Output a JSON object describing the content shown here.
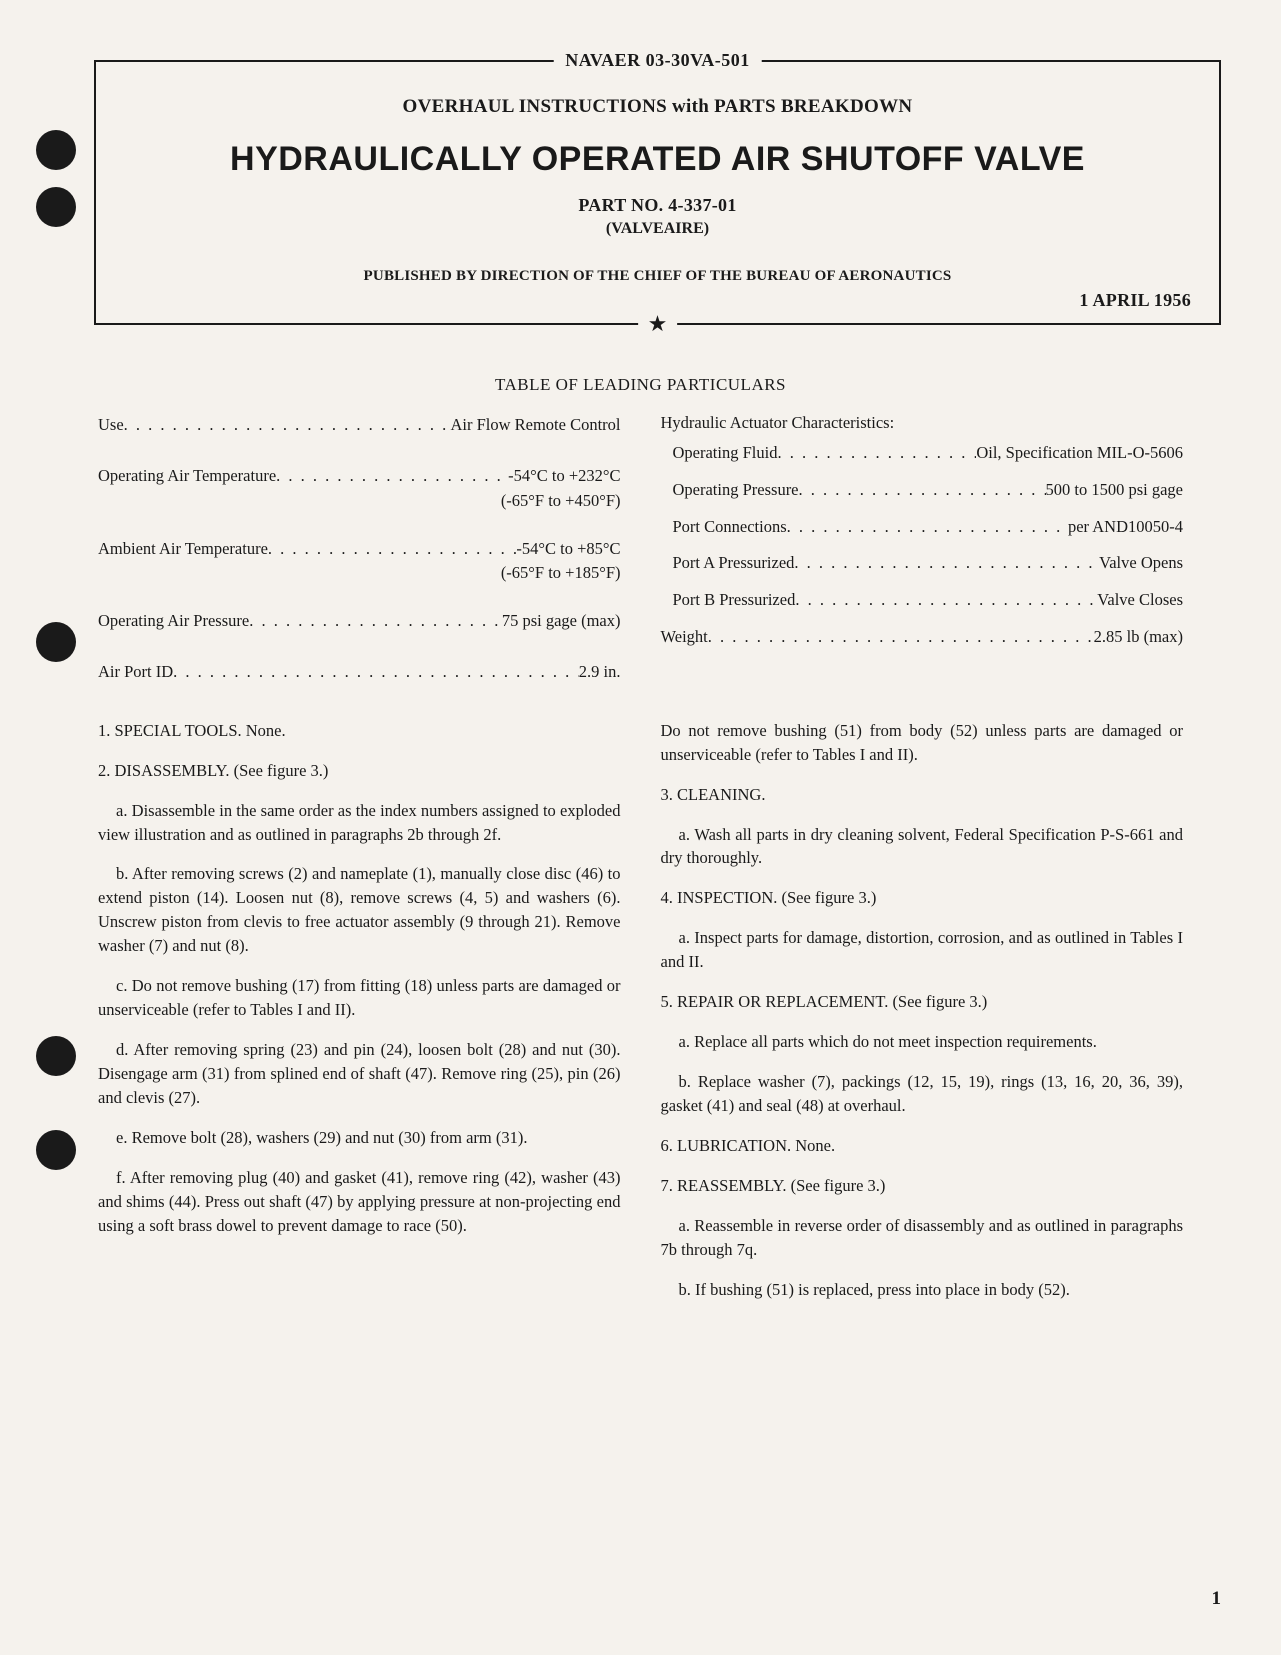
{
  "header": {
    "document_ref": "NAVAER 03-30VA-501",
    "subtitle": "OVERHAUL INSTRUCTIONS with PARTS BREAKDOWN",
    "title": "HYDRAULICALLY OPERATED AIR SHUTOFF VALVE",
    "part_no": "PART NO. 4-337-01",
    "manufacturer": "(VALVEAIRE)",
    "publisher": "PUBLISHED BY DIRECTION OF THE CHIEF OF THE BUREAU OF AERONAUTICS",
    "date": "1 APRIL 1956",
    "star": "★"
  },
  "table_title": "TABLE OF LEADING PARTICULARS",
  "particulars_left": [
    {
      "label": "Use",
      "value": "Air Flow Remote Control",
      "sub": "",
      "tall": true
    },
    {
      "label": "Operating Air Temperature",
      "value": "-54°C to +232°C",
      "sub": "(-65°F to +450°F)",
      "tall": true
    },
    {
      "label": "Ambient Air Temperature",
      "value": "-54°C to +85°C",
      "sub": "(-65°F to +185°F)",
      "tall": true
    },
    {
      "label": "Operating Air Pressure",
      "value": "75 psi gage (max)",
      "sub": "",
      "tall": true
    },
    {
      "label": "Air Port ID",
      "value": "2.9 in.",
      "sub": "",
      "tall": false
    }
  ],
  "particulars_right": [
    {
      "label": "Hydraulic Actuator Characteristics:",
      "value": "",
      "sub": "",
      "header": true
    },
    {
      "label": "Operating Fluid",
      "value": "Oil, Specification MIL-O-5606",
      "sub": "",
      "indent": true
    },
    {
      "label": "Operating Pressure",
      "value": "500 to 1500 psi gage",
      "sub": "",
      "indent": true
    },
    {
      "label": "Port Connections",
      "value": "per AND10050-4",
      "sub": "",
      "indent": true
    },
    {
      "label": "Port A Pressurized",
      "value": "Valve Opens",
      "sub": "",
      "indent": true
    },
    {
      "label": "Port B Pressurized",
      "value": "Valve Closes",
      "sub": "",
      "indent": true
    },
    {
      "label": "Weight",
      "value": "2.85 lb (max)",
      "sub": ""
    }
  ],
  "body_left": [
    {
      "text": "1. SPECIAL TOOLS. None.",
      "indent": false
    },
    {
      "text": "2. DISASSEMBLY. (See figure 3.)",
      "indent": false
    },
    {
      "text": "a. Disassemble in the same order as the index numbers assigned to exploded view illustration and as outlined in paragraphs 2b through 2f.",
      "indent": true
    },
    {
      "text": "b. After removing screws (2) and nameplate (1), manually close disc (46) to extend piston (14). Loosen nut (8), remove screws (4, 5) and washers (6). Unscrew piston from clevis to free actuator assembly (9 through 21). Remove washer (7) and nut (8).",
      "indent": true
    },
    {
      "text": "c. Do not remove bushing (17) from fitting (18) unless parts are damaged or unserviceable (refer to Tables I and II).",
      "indent": true
    },
    {
      "text": "d. After removing spring (23) and pin (24), loosen bolt (28) and nut (30). Disengage arm (31) from splined end of shaft (47). Remove ring (25), pin (26) and clevis (27).",
      "indent": true
    },
    {
      "text": "e. Remove bolt (28), washers (29) and nut (30) from arm (31).",
      "indent": true
    },
    {
      "text": "f. After removing plug (40) and gasket (41), remove ring (42), washer (43) and shims (44). Press out shaft (47) by applying pressure at non-projecting end using a soft brass dowel to prevent damage to race (50).",
      "indent": true
    }
  ],
  "body_right": [
    {
      "text": "Do not remove bushing (51) from body (52) unless parts are damaged or unserviceable (refer to Tables I and II).",
      "indent": false
    },
    {
      "text": "3. CLEANING.",
      "indent": false
    },
    {
      "text": "a. Wash all parts in dry cleaning solvent, Federal Specification P-S-661 and dry thoroughly.",
      "indent": true
    },
    {
      "text": "4. INSPECTION. (See figure 3.)",
      "indent": false
    },
    {
      "text": "a. Inspect parts for damage, distortion, corrosion, and as outlined in Tables I and II.",
      "indent": true
    },
    {
      "text": "5. REPAIR OR REPLACEMENT. (See figure 3.)",
      "indent": false
    },
    {
      "text": "a. Replace all parts which do not meet inspection requirements.",
      "indent": true
    },
    {
      "text": "b. Replace washer (7), packings (12, 15, 19), rings (13, 16, 20, 36, 39), gasket (41) and seal (48) at overhaul.",
      "indent": true
    },
    {
      "text": "6. LUBRICATION. None.",
      "indent": false
    },
    {
      "text": "7. REASSEMBLY. (See figure 3.)",
      "indent": false
    },
    {
      "text": "a. Reassemble in reverse order of disassembly and as outlined in paragraphs 7b through 7q.",
      "indent": true
    },
    {
      "text": "b. If bushing (51) is replaced, press into place in body (52).",
      "indent": true
    }
  ],
  "page_number": "1"
}
